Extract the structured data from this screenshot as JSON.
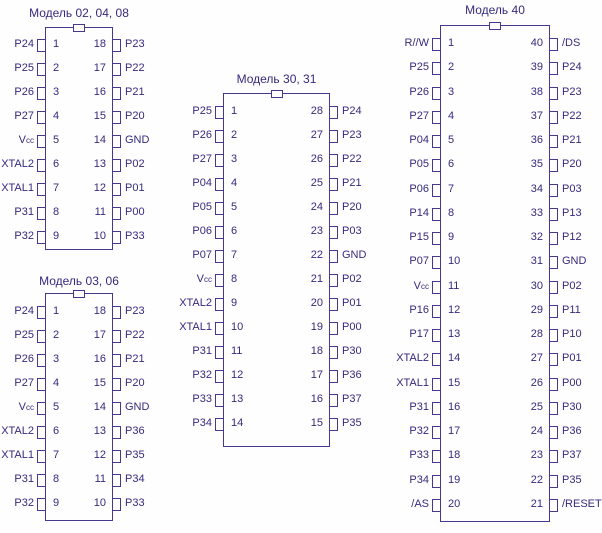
{
  "colors": {
    "ink": "#352a7d",
    "line": "#46388c",
    "background": "#fefefe"
  },
  "chips": [
    {
      "id": "model-02-04-08",
      "title": "Модель 02, 04, 08",
      "pin_count": 18,
      "left_pins": [
        {
          "n": 1,
          "name": "P24"
        },
        {
          "n": 2,
          "name": "P25"
        },
        {
          "n": 3,
          "name": "P26"
        },
        {
          "n": 4,
          "name": "P27"
        },
        {
          "n": 5,
          "name": "Vcc",
          "base": "V",
          "sub": "cc"
        },
        {
          "n": 6,
          "name": "XTAL2"
        },
        {
          "n": 7,
          "name": "XTAL1"
        },
        {
          "n": 8,
          "name": "P31"
        },
        {
          "n": 9,
          "name": "P32"
        }
      ],
      "right_pins": [
        {
          "n": 18,
          "name": "P23"
        },
        {
          "n": 17,
          "name": "P22"
        },
        {
          "n": 16,
          "name": "P21"
        },
        {
          "n": 15,
          "name": "P20"
        },
        {
          "n": 14,
          "name": "GND"
        },
        {
          "n": 13,
          "name": "P02"
        },
        {
          "n": 12,
          "name": "P01"
        },
        {
          "n": 11,
          "name": "P00"
        },
        {
          "n": 10,
          "name": "P33"
        }
      ]
    },
    {
      "id": "model-03-06",
      "title": "Модель 03, 06",
      "pin_count": 18,
      "left_pins": [
        {
          "n": 1,
          "name": "P24"
        },
        {
          "n": 2,
          "name": "P25"
        },
        {
          "n": 3,
          "name": "P26"
        },
        {
          "n": 4,
          "name": "P27"
        },
        {
          "n": 5,
          "name": "Vcc",
          "base": "V",
          "sub": "cc"
        },
        {
          "n": 6,
          "name": "XTAL2"
        },
        {
          "n": 7,
          "name": "XTAL1"
        },
        {
          "n": 8,
          "name": "P31"
        },
        {
          "n": 9,
          "name": "P32"
        }
      ],
      "right_pins": [
        {
          "n": 18,
          "name": "P23"
        },
        {
          "n": 17,
          "name": "P22"
        },
        {
          "n": 16,
          "name": "P21"
        },
        {
          "n": 15,
          "name": "P20"
        },
        {
          "n": 14,
          "name": "GND"
        },
        {
          "n": 13,
          "name": "P36"
        },
        {
          "n": 12,
          "name": "P35"
        },
        {
          "n": 11,
          "name": "P34"
        },
        {
          "n": 10,
          "name": "P33"
        }
      ]
    },
    {
      "id": "model-30-31",
      "title": "Модель 30, 31",
      "pin_count": 28,
      "left_pins": [
        {
          "n": 1,
          "name": "P25"
        },
        {
          "n": 2,
          "name": "P26"
        },
        {
          "n": 3,
          "name": "P27"
        },
        {
          "n": 4,
          "name": "P04"
        },
        {
          "n": 5,
          "name": "P05"
        },
        {
          "n": 6,
          "name": "P06"
        },
        {
          "n": 7,
          "name": "P07"
        },
        {
          "n": 8,
          "name": "Vcc",
          "base": "V",
          "sub": "cc"
        },
        {
          "n": 9,
          "name": "XTAL2"
        },
        {
          "n": 10,
          "name": "XTAL1"
        },
        {
          "n": 11,
          "name": "P31"
        },
        {
          "n": 12,
          "name": "P32"
        },
        {
          "n": 13,
          "name": "P33"
        },
        {
          "n": 14,
          "name": "P34"
        }
      ],
      "right_pins": [
        {
          "n": 28,
          "name": "P24"
        },
        {
          "n": 27,
          "name": "P23"
        },
        {
          "n": 26,
          "name": "P22"
        },
        {
          "n": 25,
          "name": "P21"
        },
        {
          "n": 24,
          "name": "P20"
        },
        {
          "n": 23,
          "name": "P03"
        },
        {
          "n": 22,
          "name": "GND"
        },
        {
          "n": 21,
          "name": "P02"
        },
        {
          "n": 20,
          "name": "P01"
        },
        {
          "n": 19,
          "name": "P00"
        },
        {
          "n": 18,
          "name": "P30"
        },
        {
          "n": 17,
          "name": "P36"
        },
        {
          "n": 16,
          "name": "P37"
        },
        {
          "n": 15,
          "name": "P35"
        }
      ]
    },
    {
      "id": "model-40",
      "title": "Модель 40",
      "pin_count": 40,
      "left_pins": [
        {
          "n": 1,
          "name": "R//W"
        },
        {
          "n": 2,
          "name": "P25"
        },
        {
          "n": 3,
          "name": "P26"
        },
        {
          "n": 4,
          "name": "P27"
        },
        {
          "n": 5,
          "name": "P04"
        },
        {
          "n": 6,
          "name": "P05"
        },
        {
          "n": 7,
          "name": "P06"
        },
        {
          "n": 8,
          "name": "P14"
        },
        {
          "n": 9,
          "name": "P15"
        },
        {
          "n": 10,
          "name": "P07"
        },
        {
          "n": 11,
          "name": "Vcc",
          "base": "V",
          "sub": "cc"
        },
        {
          "n": 12,
          "name": "P16"
        },
        {
          "n": 13,
          "name": "P17"
        },
        {
          "n": 14,
          "name": "XTAL2"
        },
        {
          "n": 15,
          "name": "XTAL1"
        },
        {
          "n": 16,
          "name": "P31"
        },
        {
          "n": 17,
          "name": "P32"
        },
        {
          "n": 18,
          "name": "P33"
        },
        {
          "n": 19,
          "name": "P34"
        },
        {
          "n": 20,
          "name": "/AS"
        }
      ],
      "right_pins": [
        {
          "n": 40,
          "name": "/DS"
        },
        {
          "n": 39,
          "name": "P24"
        },
        {
          "n": 38,
          "name": "P23"
        },
        {
          "n": 37,
          "name": "P22"
        },
        {
          "n": 36,
          "name": "P21"
        },
        {
          "n": 35,
          "name": "P20"
        },
        {
          "n": 34,
          "name": "P03"
        },
        {
          "n": 33,
          "name": "P13"
        },
        {
          "n": 32,
          "name": "P12"
        },
        {
          "n": 31,
          "name": "GND"
        },
        {
          "n": 30,
          "name": "P02"
        },
        {
          "n": 29,
          "name": "P11"
        },
        {
          "n": 28,
          "name": "P10"
        },
        {
          "n": 27,
          "name": "P01"
        },
        {
          "n": 26,
          "name": "P00"
        },
        {
          "n": 25,
          "name": "P30"
        },
        {
          "n": 24,
          "name": "P36"
        },
        {
          "n": 23,
          "name": "P37"
        },
        {
          "n": 22,
          "name": "P35"
        },
        {
          "n": 21,
          "name": "/RESET"
        }
      ]
    }
  ]
}
